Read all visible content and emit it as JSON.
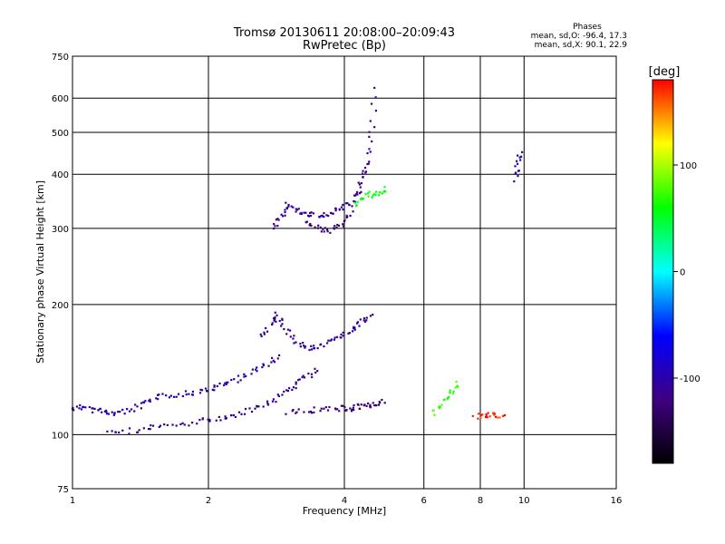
{
  "chart_data": {
    "type": "scatter",
    "title": "Tromsø 20130611 20:08:00–20:09:43",
    "subtitle": "RwPretec (Bp)",
    "xlabel": "Frequency [MHz]",
    "ylabel": "Stationary phase Virtual Height [km]",
    "x_scale": "log",
    "y_scale": "log",
    "xlim": [
      1,
      16
    ],
    "ylim": [
      75,
      750
    ],
    "x_ticks": [
      1,
      2,
      4,
      6,
      8,
      10,
      16
    ],
    "y_ticks": [
      75,
      100,
      200,
      300,
      400,
      500,
      600,
      750
    ],
    "grid": true,
    "phase_box": {
      "title": "Phases",
      "line_o": "mean, sd,O: -96.4, 17.3",
      "line_x": "mean, sd,X:  90.1, 22.9"
    },
    "colorbar": {
      "label": "[deg]",
      "range": [
        -180,
        180
      ],
      "ticks": [
        100,
        0,
        -100
      ],
      "colors": [
        "#ff0000",
        "#ffff00",
        "#00ff00",
        "#00ffff",
        "#0000ff",
        "#400080",
        "#000000"
      ]
    },
    "traces": [
      {
        "x": [
          1.0,
          1.06,
          1.12,
          1.18,
          1.25,
          1.35,
          1.45,
          1.55,
          1.7,
          1.85,
          2.0,
          2.15,
          2.3,
          2.5,
          2.7,
          2.9
        ],
        "y": [
          115,
          116,
          114,
          113,
          112,
          114,
          118,
          122,
          124,
          125,
          127,
          130,
          134,
          140,
          146,
          152
        ],
        "phase": -100
      },
      {
        "x": [
          1.2,
          1.35,
          1.5,
          1.7,
          1.9,
          2.1,
          2.3,
          2.5,
          2.7,
          2.9,
          3.1,
          3.3,
          3.5
        ],
        "y": [
          101,
          102,
          104,
          105,
          107,
          109,
          111,
          114,
          118,
          124,
          130,
          136,
          142
        ],
        "phase": -110
      },
      {
        "x": [
          2.6,
          2.75,
          2.85,
          2.95,
          3.1,
          3.3,
          3.5,
          3.75,
          4.0,
          4.2,
          4.4,
          4.6
        ],
        "y": [
          170,
          180,
          190,
          175,
          165,
          158,
          160,
          165,
          170,
          176,
          184,
          190
        ],
        "phase": -105
      },
      {
        "x": [
          3.0,
          3.3,
          3.6,
          3.9,
          4.1,
          4.3,
          4.5,
          4.7,
          4.9
        ],
        "y": [
          113,
          114,
          114,
          115,
          115,
          116,
          117,
          118,
          119
        ],
        "phase": -120
      },
      {
        "x": [
          2.8,
          2.9,
          3.0,
          3.15,
          3.3,
          3.5,
          3.7,
          3.9,
          4.1,
          4.3,
          4.5,
          4.6,
          4.7
        ],
        "y": [
          300,
          320,
          340,
          330,
          325,
          320,
          325,
          330,
          340,
          370,
          420,
          500,
          650
        ],
        "phase": -110
      },
      {
        "x": [
          3.3,
          3.5,
          3.7,
          3.9,
          4.1,
          4.3,
          4.5
        ],
        "y": [
          310,
          300,
          295,
          305,
          320,
          360,
          430
        ],
        "phase": -125
      },
      {
        "x": [
          4.2,
          4.4,
          4.6,
          4.8,
          5.0
        ],
        "y": [
          340,
          350,
          360,
          365,
          370
        ],
        "phase": 60
      },
      {
        "x": [
          6.3,
          6.6,
          6.9,
          7.2
        ],
        "y": [
          112,
          118,
          125,
          132
        ],
        "phase": 70
      },
      {
        "x": [
          7.8,
          8.2,
          8.6,
          9.0
        ],
        "y": [
          110,
          111,
          111,
          111
        ],
        "phase": 170
      },
      {
        "x": [
          9.6,
          9.7,
          9.8
        ],
        "y": [
          390,
          420,
          450
        ],
        "phase": -100
      }
    ]
  }
}
